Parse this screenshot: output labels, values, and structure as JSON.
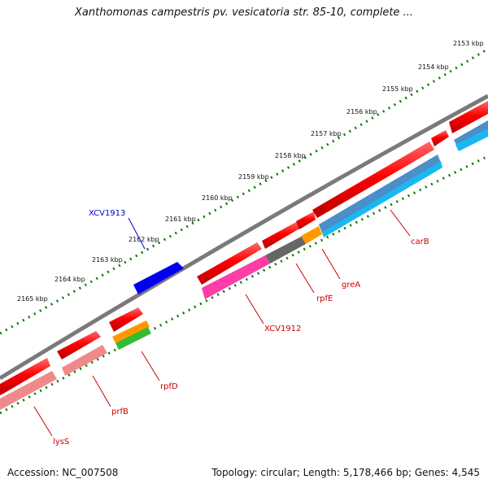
{
  "title": "Xanthomonas campestris pv. vesicatoria str. 85-10, complete ...",
  "footer": {
    "accession": "Accession: NC_007508",
    "summary": "Topology: circular; Length: 5,178,466 bp; Genes: 4,545"
  },
  "ticks": [
    "2153 kbp",
    "2154 kbp",
    "2155 kbp",
    "2156 kbp",
    "2157 kbp",
    "2158 kbp",
    "2159 kbp",
    "2160 kbp",
    "2161 kbp",
    "2162 kbp",
    "2163 kbp",
    "2164 kbp",
    "2165 kbp"
  ],
  "gene_labels": {
    "xcv1913": "XCV1913",
    "carb": "carB",
    "grea": "greA",
    "rpfe": "rpfE",
    "xcv1912": "XCV1912",
    "rpfd": "rpfD",
    "prfb": "prfB",
    "lyss": "lysS"
  },
  "colors": {
    "backbone": "#808080",
    "gene": "#ff0000",
    "pseudo_blue": "#0000ee",
    "label_red": "#cc0000",
    "label_blue": "#0000cc",
    "tick_green": "#0a7a0a",
    "cds_pink": "#ff3da6",
    "cds_light_red": "#f08a8a",
    "cds_orange": "#ff9900",
    "cds_green": "#33bb33",
    "cds_gray": "#666666",
    "cds_steel": "#4a8fc8",
    "cds_cyan": "#1ab8f0"
  }
}
